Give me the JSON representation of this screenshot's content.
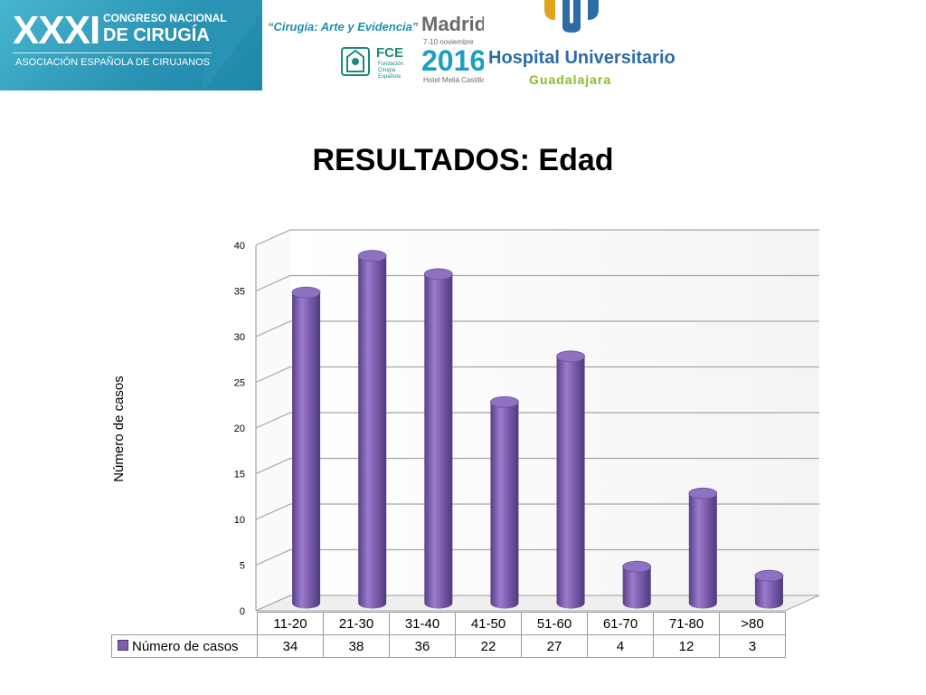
{
  "banner": {
    "congress_number": "XXXI",
    "congress_line1": "CONGRESO NACIONAL",
    "congress_line2": "DE CIRUGÍA",
    "association": "ASOCIACIÓN ESPAÑOLA DE CIRUJANOS",
    "motto": "“Cirugía: Arte y Evidencia”",
    "city": "Madrid",
    "dates": "7-10 noviembre",
    "year": "2016",
    "venue": "Hotel Meliá Castilla",
    "fce": "FCE",
    "fce_sub": "Fundación Cirugía Española",
    "hospital_name": "Hospital Universitario",
    "hospital_city": "Guadalajara",
    "colors": {
      "teal": "#2a93b4",
      "hospital_blue": "#2c6da8",
      "hospital_green": "#8cba2a"
    }
  },
  "slide_title": "RESULTADOS: Edad",
  "chart_data": {
    "type": "bar",
    "style": "3d-cylinder",
    "title": "",
    "ylabel": "Número de casos",
    "xlabel": "",
    "categories": [
      "11-20",
      "21-30",
      "31-40",
      "41-50",
      "51-60",
      "61-70",
      "71-80",
      ">80"
    ],
    "series": [
      {
        "name": "Número de casos",
        "values": [
          34,
          38,
          36,
          22,
          27,
          4,
          12,
          3
        ],
        "color": "#7e5fb0"
      }
    ],
    "ylim": [
      0,
      40
    ],
    "yticks": [
      "0",
      "5",
      "10",
      "15",
      "20",
      "25",
      "30",
      "35",
      "40"
    ],
    "grid": true,
    "legend": "data-table"
  }
}
